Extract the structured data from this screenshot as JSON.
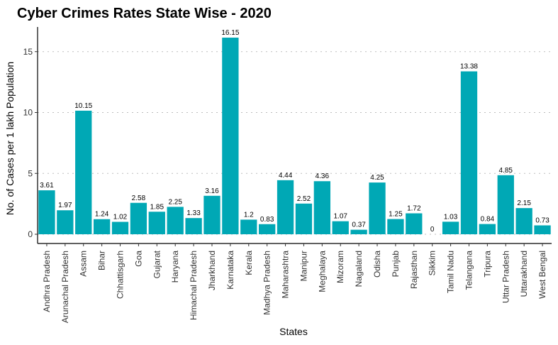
{
  "chart_data": {
    "type": "bar",
    "title": "Cyber Crimes Rates State Wise - 2020",
    "xlabel": "States",
    "ylabel": "No. of Cases per 1 lakh Population",
    "ylim": [
      0,
      17
    ],
    "yticks": [
      0,
      5,
      10,
      15
    ],
    "grid": "horizontal dotted",
    "legend": "none",
    "bar_color": "#00a8b5",
    "categories": [
      "Andhra Pradesh",
      "Arunachal Pradesh",
      "Assam",
      "Bihar",
      "Chhattisgarh",
      "Goa",
      "Gujarat",
      "Haryana",
      "Himachal Pradesh",
      "Jharkhand",
      "Karnataka",
      "Kerala",
      "Madhya Pradesh",
      "Maharashtra",
      "Manipur",
      "Meghalaya",
      "Mizoram",
      "Nagaland",
      "Odisha",
      "Punjab",
      "Rajasthan",
      "Sikkim",
      "Tamil Nadu",
      "Telangana",
      "Tripura",
      "Uttar Pradesh",
      "Uttarakhand",
      "West Bengal"
    ],
    "values": [
      3.61,
      1.97,
      10.15,
      1.24,
      1.02,
      2.58,
      1.85,
      2.25,
      1.33,
      3.16,
      16.15,
      1.2,
      0.83,
      4.44,
      2.52,
      4.36,
      1.07,
      0.37,
      4.25,
      1.25,
      1.72,
      0,
      1.03,
      13.38,
      0.84,
      4.85,
      2.15,
      0.73
    ],
    "value_labels": [
      "3.61",
      "1.97",
      "10.15",
      "1.24",
      "1.02",
      "2.58",
      "1.85",
      "2.25",
      "1.33",
      "3.16",
      "16.15",
      "1.2",
      "0.83",
      "4.44",
      "2.52",
      "4.36",
      "1.07",
      "0.37",
      "4.25",
      "1.25",
      "1.72",
      "0",
      "1.03",
      "13.38",
      "0.84",
      "4.85",
      "2.15",
      "0.73"
    ]
  }
}
